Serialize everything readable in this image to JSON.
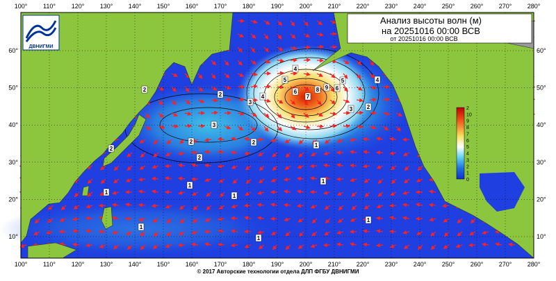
{
  "header": {
    "title": "Анализ высоты волн (м)",
    "subtitle": "на 20251016 00:00 ВСВ",
    "issued": "от 20251016 00:00 ВСВ"
  },
  "logo": {
    "text": "ДВНИГМИ"
  },
  "map": {
    "lon_labels": [
      "100°",
      "110°",
      "120°",
      "130°",
      "140°",
      "150°",
      "160°",
      "170°",
      "180°",
      "190°",
      "200°",
      "210°",
      "220°",
      "230°",
      "240°",
      "250°",
      "260°",
      "270°",
      "280°"
    ],
    "lat_labels": [
      "60°",
      "50°",
      "40°",
      "30°",
      "20°",
      "10°"
    ],
    "contour_labels": [
      "2",
      "2",
      "3",
      "3",
      "4",
      "2",
      "2",
      "2",
      "2",
      "5",
      "6",
      "7",
      "8",
      "9",
      "6",
      "5",
      "4",
      "3",
      "2",
      "4",
      "1",
      "1",
      "1",
      "1",
      "1",
      "1",
      "1",
      "1"
    ],
    "colorbar_labels": [
      "2",
      "10",
      "9",
      "8",
      "7",
      "6",
      "5",
      "4",
      "3",
      "2",
      "1",
      "0"
    ]
  },
  "footer": {
    "text": "© 2017 Авторские технологии отдела ДЛП ФГБУ ДВНИГМИ"
  }
}
